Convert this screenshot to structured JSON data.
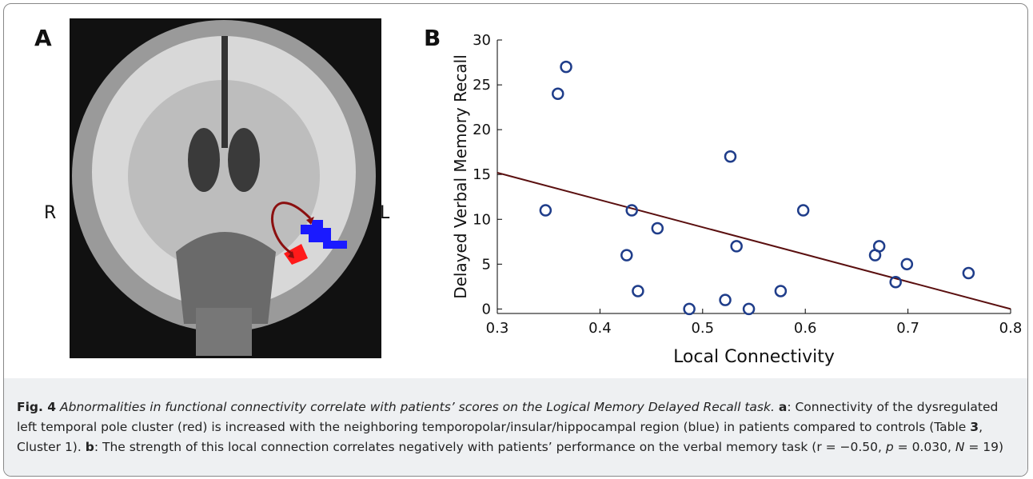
{
  "panels": {
    "a": "A",
    "b": "B"
  },
  "brain": {
    "right": "R",
    "left": "L"
  },
  "chart_data": {
    "type": "scatter",
    "x_label": "Local Connectivity",
    "y_label": "Delayed Verbal Memory Recall",
    "x": [
      0.347,
      0.359,
      0.367,
      0.431,
      0.426,
      0.437,
      0.456,
      0.487,
      0.527,
      0.522,
      0.533,
      0.545,
      0.576,
      0.598,
      0.668,
      0.672,
      0.699,
      0.688,
      0.759
    ],
    "values": [
      11,
      24,
      27,
      11,
      6,
      2,
      9,
      0,
      17,
      1,
      7,
      0,
      2,
      11,
      6,
      7,
      5,
      3,
      4
    ],
    "color": "#1f3d8a",
    "fit": {
      "x": [
        0.3,
        0.8
      ],
      "values": [
        15.2,
        0
      ],
      "color": "#5a0f0f"
    },
    "xlim": [
      0.3,
      0.8
    ],
    "ylim": [
      -0.5,
      30
    ],
    "xticks": [
      0.3,
      0.4,
      0.5,
      0.6,
      0.7,
      0.8
    ],
    "yticks": [
      0,
      5,
      10,
      15,
      20,
      25,
      30
    ]
  },
  "caption": {
    "label": "Fig. 4",
    "title": "Abnormalities in functional connectivity correlate with patients’ scores on the Logical Memory Delayed Recall task.",
    "a_label": "a",
    "a_text": ": Connectivity of the dysregulated left temporal pole cluster (red) is increased with the neighboring temporopolar/insular/hippocampal region (blue) in patients compared to controls (Table ",
    "a_ref": "3",
    "a_end": ", Cluster 1).",
    "b_label": "b",
    "b_text": ": The strength of this local connection correlates negatively with patients’ performance on the verbal memory task (r = −0.50, ",
    "p": "p",
    "p_val": " = 0.030, ",
    "n": "N",
    "n_val": " = 19)"
  }
}
